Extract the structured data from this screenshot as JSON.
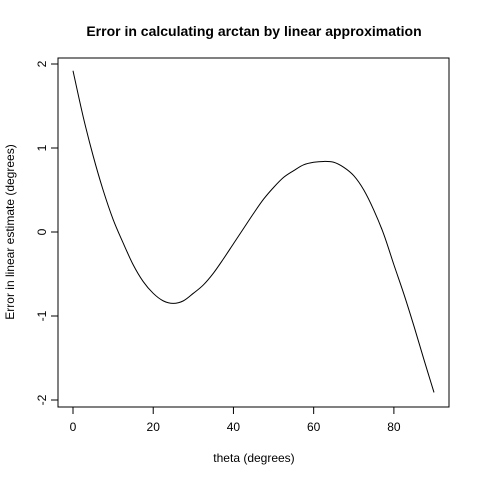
{
  "chart_data": {
    "type": "line",
    "title": "Error in calculating arctan by linear approximation",
    "xlabel": "theta (degrees)",
    "ylabel": "Error in linear estimate (degrees)",
    "xlim": [
      0,
      90
    ],
    "ylim": [
      -2,
      2
    ],
    "x_ticks": [
      0,
      20,
      40,
      60,
      80
    ],
    "y_ticks": [
      -2,
      -1,
      0,
      1,
      2
    ],
    "x_tick_labels": [
      "0",
      "20",
      "40",
      "60",
      "80"
    ],
    "y_tick_labels": [
      "-2",
      "-1",
      "0",
      "1",
      "2"
    ],
    "grid": false,
    "legend": "none",
    "line_color": "#000000",
    "series": [
      {
        "x": [
          0,
          2.5,
          5,
          7.5,
          10,
          12.5,
          15,
          17.5,
          20,
          22.5,
          25,
          27.5,
          30,
          32.5,
          35,
          37.5,
          40,
          42.5,
          45,
          47.5,
          50,
          52.5,
          55,
          57.5,
          60,
          62.5,
          65,
          67.5,
          70,
          72.5,
          75,
          77.5,
          80,
          82.5,
          85,
          87.5,
          90
        ],
        "y": [
          1.92,
          1.38,
          0.91,
          0.5,
          0.15,
          -0.13,
          -0.39,
          -0.59,
          -0.73,
          -0.82,
          -0.85,
          -0.82,
          -0.73,
          -0.63,
          -0.49,
          -0.32,
          -0.14,
          0.04,
          0.22,
          0.39,
          0.53,
          0.65,
          0.73,
          0.8,
          0.83,
          0.84,
          0.83,
          0.77,
          0.67,
          0.5,
          0.26,
          -0.03,
          -0.39,
          -0.74,
          -1.12,
          -1.52,
          -1.91
        ]
      }
    ]
  }
}
